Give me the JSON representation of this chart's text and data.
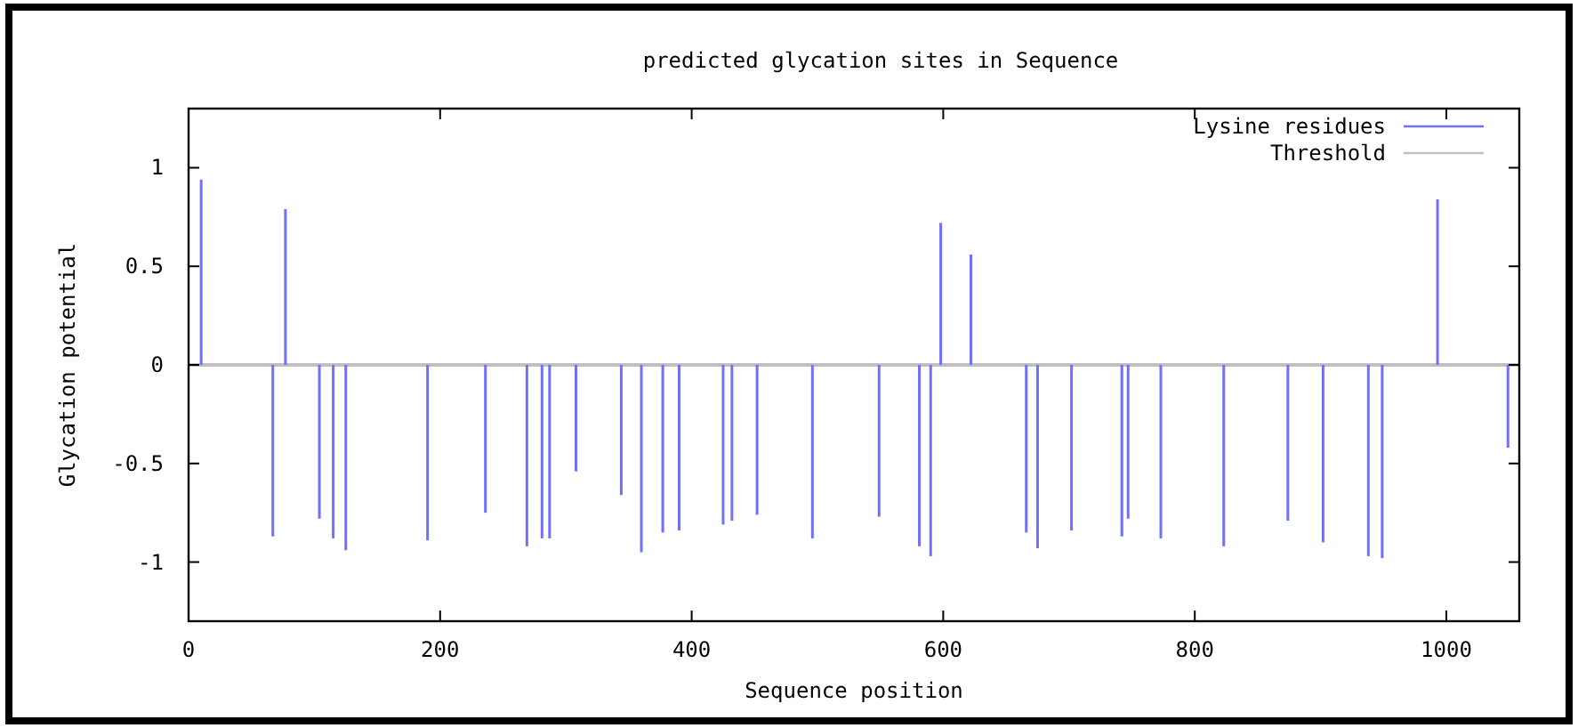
{
  "chart_data": {
    "type": "bar",
    "title": "predicted glycation sites in Sequence",
    "xlabel": "Sequence position",
    "ylabel": "Glycation potential",
    "x": [
      10,
      67,
      77,
      104,
      115,
      125,
      190,
      236,
      269,
      281,
      287,
      308,
      344,
      360,
      377,
      390,
      425,
      432,
      452,
      496,
      549,
      581,
      590,
      598,
      622,
      666,
      675,
      702,
      742,
      747,
      773,
      823,
      874,
      902,
      938,
      949,
      993,
      1049
    ],
    "series": [
      {
        "name": "Lysine residues",
        "color": "#7070ff",
        "values": [
          0.94,
          -0.87,
          0.79,
          -0.78,
          -0.88,
          -0.94,
          -0.89,
          -0.75,
          -0.92,
          -0.88,
          -0.88,
          -0.54,
          -0.66,
          -0.95,
          -0.85,
          -0.84,
          -0.81,
          -0.79,
          -0.76,
          -0.88,
          -0.77,
          -0.92,
          -0.97,
          0.72,
          0.56,
          -0.85,
          -0.93,
          -0.84,
          -0.87,
          -0.78,
          -0.88,
          -0.92,
          -0.79,
          -0.9,
          -0.97,
          -0.98,
          0.84,
          -0.42
        ]
      }
    ],
    "xlim": [
      0,
      1058
    ],
    "xticks": [
      0,
      200,
      400,
      600,
      800,
      1000
    ],
    "ylim": [
      -1.3,
      1.3
    ],
    "yticks": [
      -1,
      -0.5,
      0,
      0.5,
      1
    ],
    "ref_lines": [
      {
        "axis": "y",
        "value": 0,
        "label": "Threshold",
        "color": "#c0c0c0"
      }
    ],
    "legend": "top right",
    "grid": false
  }
}
